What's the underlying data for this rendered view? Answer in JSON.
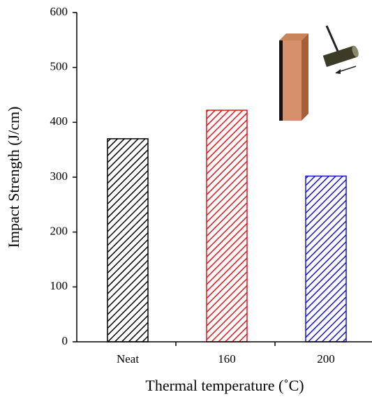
{
  "chart_data": {
    "type": "bar",
    "x_label": "Thermal temperature (˚C)",
    "y_label": "Impact Strength (J/cm)",
    "categories": [
      "Neat",
      "160",
      "200"
    ],
    "values": [
      370,
      422,
      302
    ],
    "colors": [
      "#000000",
      "#e8141c",
      "#1414d2"
    ],
    "hatch": true,
    "ylim": [
      0,
      600
    ],
    "yticks": [
      0,
      100,
      200,
      300,
      400,
      500,
      600
    ]
  }
}
